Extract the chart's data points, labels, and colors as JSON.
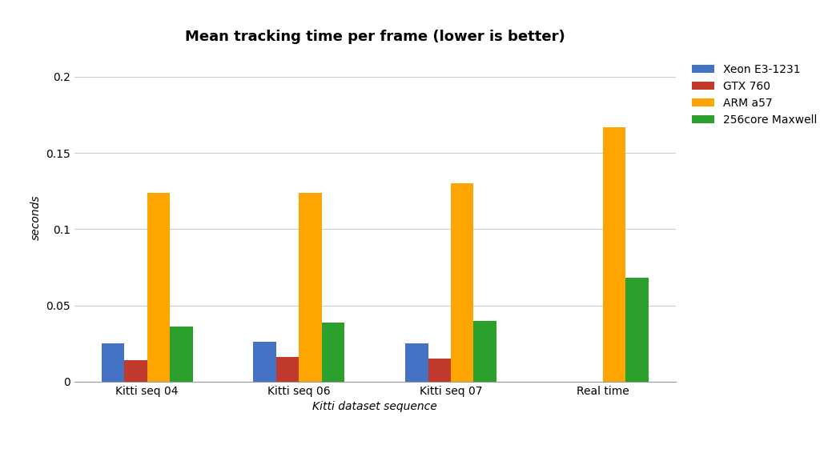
{
  "title": "Mean tracking time per frame (lower is better)",
  "xlabel": "Kitti dataset sequence",
  "ylabel": "seconds",
  "categories": [
    "Kitti seq 04",
    "Kitti seq 06",
    "Kitti seq 07",
    "Real time"
  ],
  "series": [
    {
      "label": "Xeon E3-1231",
      "color": "#4472C4",
      "values": [
        0.025,
        0.026,
        0.025,
        null
      ]
    },
    {
      "label": "GTX 760",
      "color": "#C0392B",
      "values": [
        0.014,
        0.016,
        0.015,
        null
      ]
    },
    {
      "label": "ARM a57",
      "color": "#FFA500",
      "values": [
        0.124,
        0.124,
        0.13,
        0.167
      ]
    },
    {
      "label": "256core Maxwell",
      "color": "#2CA02C",
      "values": [
        0.036,
        0.039,
        0.04,
        0.068
      ]
    }
  ],
  "ylim": [
    0,
    0.215
  ],
  "yticks": [
    0,
    0.05,
    0.1,
    0.15,
    0.2
  ],
  "ytick_labels": [
    "0",
    "0.05",
    "0.1",
    "0.15",
    "0.2"
  ],
  "background_color": "#ffffff",
  "grid_color": "#cccccc",
  "bar_width": 0.15,
  "title_fontsize": 13,
  "axis_label_fontsize": 10,
  "tick_fontsize": 10,
  "legend_fontsize": 10,
  "figsize": [
    10.29,
    5.61
  ],
  "dpi": 100
}
